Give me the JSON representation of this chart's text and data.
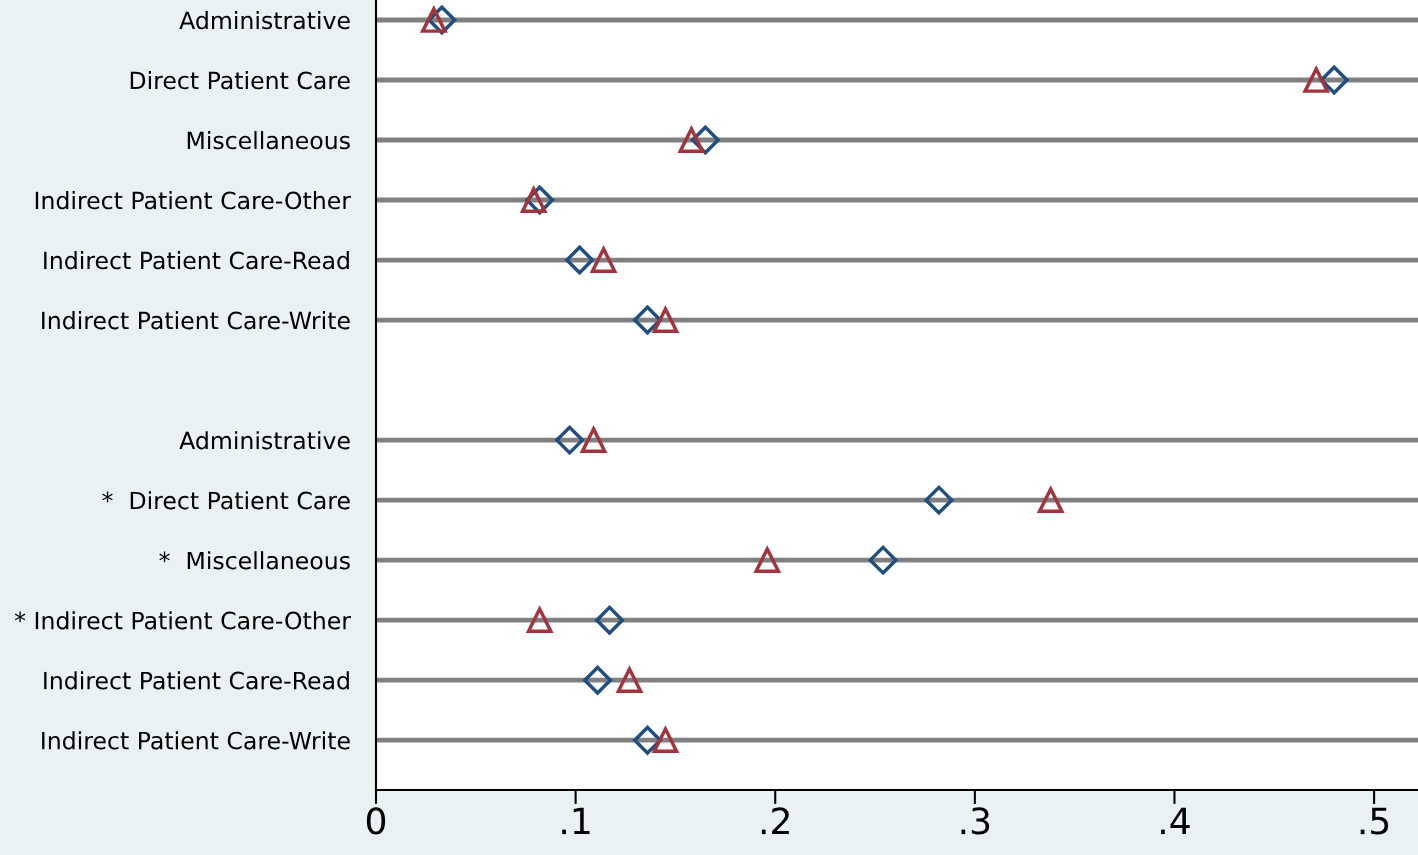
{
  "chart_data": {
    "type": "scatter",
    "orientation": "horizontal",
    "categories": [
      "Administrative",
      "Direct Patient Care",
      "Miscellaneous",
      "Indirect Patient Care-Other",
      "Indirect Patient Care-Read",
      "Indirect Patient Care-Write",
      null,
      "Administrative",
      "*  Direct Patient Care",
      "*  Miscellaneous",
      "* Indirect Patient Care-Other",
      "Indirect Patient Care-Read",
      "Indirect Patient Care-Write"
    ],
    "series": [
      {
        "color": "#1f4e80",
        "marker": "diamond",
        "values": [
          0.033,
          0.48,
          0.165,
          0.082,
          0.102,
          0.136,
          null,
          0.097,
          0.282,
          0.254,
          0.117,
          0.111,
          0.136
        ]
      },
      {
        "color": "#a3333d",
        "marker": "triangle",
        "values": [
          0.029,
          0.471,
          0.158,
          0.079,
          0.114,
          0.145,
          null,
          0.109,
          0.338,
          0.196,
          0.082,
          0.127,
          0.145
        ]
      }
    ],
    "xlim": [
      0,
      0.522
    ],
    "xticks": [
      0,
      {
        "value": 0.1,
        "label": ".1"
      },
      {
        "value": 0.2,
        "label": ".2"
      },
      {
        "value": 0.3,
        "label": ".3"
      },
      {
        "value": 0.4,
        "label": ".4"
      },
      {
        "value": 0.5,
        "label": ".5"
      }
    ],
    "grid": "y",
    "legend": false
  }
}
